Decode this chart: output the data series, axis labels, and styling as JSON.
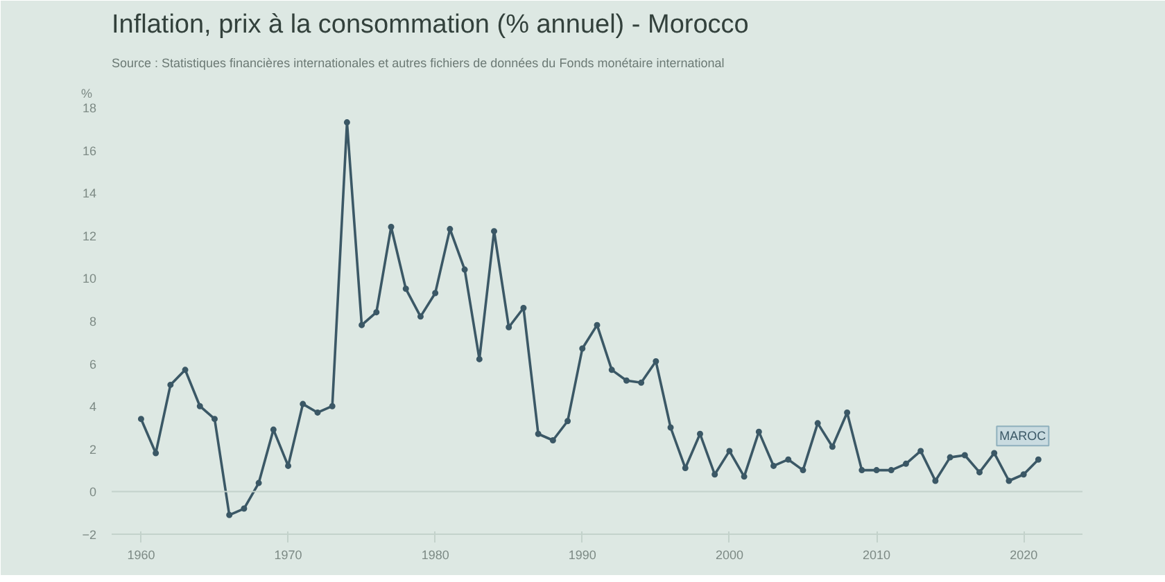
{
  "chart_data": {
    "type": "line",
    "title": "Inflation, prix à la consommation (% annuel) - Morocco",
    "annotations": [
      "Source : Statistiques financières internationales et autres fichiers de données du Fonds monétaire international"
    ],
    "ylabel": "%",
    "x": [
      1960,
      1961,
      1962,
      1963,
      1964,
      1965,
      1966,
      1967,
      1968,
      1969,
      1970,
      1971,
      1972,
      1973,
      1974,
      1975,
      1976,
      1977,
      1978,
      1979,
      1980,
      1981,
      1982,
      1983,
      1984,
      1985,
      1986,
      1987,
      1988,
      1989,
      1990,
      1991,
      1992,
      1993,
      1994,
      1995,
      1996,
      1997,
      1998,
      1999,
      2000,
      2001,
      2002,
      2003,
      2004,
      2005,
      2006,
      2007,
      2008,
      2009,
      2010,
      2011,
      2012,
      2013,
      2014,
      2015,
      2016,
      2017,
      2018,
      2019,
      2020,
      2021
    ],
    "series": [
      {
        "name": "MAROC",
        "color": "#3b5866",
        "values": [
          3.4,
          1.8,
          5.0,
          5.7,
          4.0,
          3.4,
          -1.1,
          -0.8,
          0.4,
          2.9,
          1.2,
          4.1,
          3.7,
          4.0,
          17.3,
          7.8,
          8.4,
          12.4,
          9.5,
          8.2,
          9.3,
          12.3,
          10.4,
          6.2,
          12.2,
          7.7,
          8.6,
          2.7,
          2.4,
          3.3,
          6.7,
          7.8,
          5.7,
          5.2,
          5.1,
          6.1,
          3.0,
          1.1,
          2.7,
          0.8,
          1.9,
          0.7,
          2.8,
          1.2,
          1.5,
          1.0,
          3.2,
          2.1,
          3.7,
          1.0,
          1.0,
          1.0,
          1.3,
          1.9,
          0.5,
          1.6,
          1.7,
          0.9,
          1.8,
          0.5,
          0.8,
          1.5
        ]
      }
    ],
    "xlim": [
      1958,
      2024
    ],
    "xticks": [
      1960,
      1970,
      1980,
      1990,
      2000,
      2010,
      2020
    ],
    "ylim": [
      -2,
      18
    ],
    "yticks": [
      -2,
      0,
      2,
      4,
      6,
      8,
      10,
      12,
      14,
      16,
      18
    ],
    "ref_lines": [
      {
        "axis": "y",
        "value": 0,
        "color": "#c3d2cb"
      }
    ],
    "marker": "circle",
    "line_style": "solid"
  }
}
